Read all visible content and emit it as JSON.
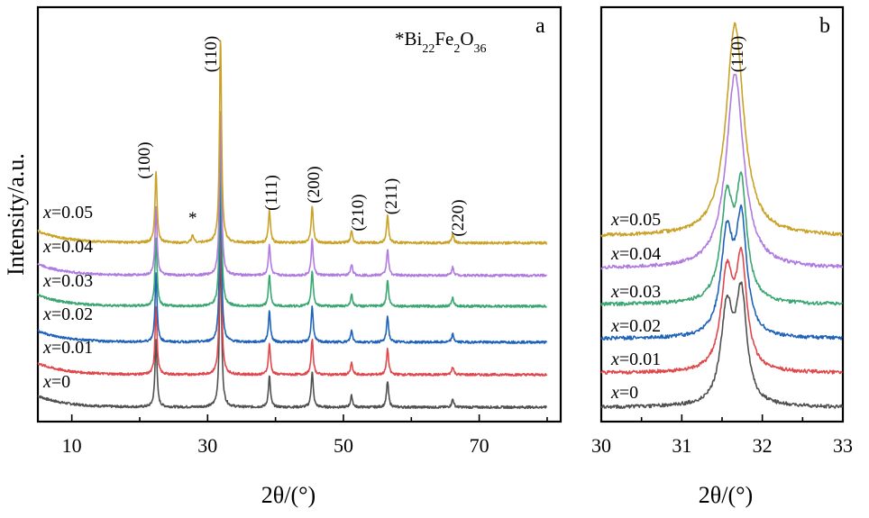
{
  "chart_data": [
    {
      "panel": "a",
      "type": "line",
      "xlabel": "2θ/(°)",
      "ylabel": "Intensity/a.u.",
      "xlim": [
        5,
        82
      ],
      "xticks": [
        10,
        30,
        50,
        70
      ],
      "series": [
        {
          "name": "x=0",
          "color": "#505050",
          "baseline": 0.0
        },
        {
          "name": "x=0.01",
          "color": "#e0474c",
          "baseline": 0.95
        },
        {
          "name": "x=0.02",
          "color": "#1f63b8",
          "baseline": 1.9
        },
        {
          "name": "x=0.03",
          "color": "#3aa672",
          "baseline": 2.95
        },
        {
          "name": "x=0.04",
          "color": "#b07be0",
          "baseline": 3.85
        },
        {
          "name": "x=0.05",
          "color": "#c9a227",
          "baseline": 4.8
        }
      ],
      "peaks": [
        {
          "label": "(100)",
          "x": 22.4,
          "height": 2.1
        },
        {
          "label": "(110)",
          "x": 31.9,
          "height": 6.0
        },
        {
          "label": "(111)",
          "x": 39.1,
          "height": 0.95
        },
        {
          "label": "(200)",
          "x": 45.4,
          "height": 1.1
        },
        {
          "label": "(210)",
          "x": 51.2,
          "height": 0.35
        },
        {
          "label": "(211)",
          "x": 56.5,
          "height": 0.8
        },
        {
          "label": "(220)",
          "x": 66.1,
          "height": 0.25
        }
      ],
      "impurity_marker": {
        "symbol": "*",
        "x": 27.8
      },
      "legend_text": {
        "prefix": "*",
        "formula": "Bi",
        "s1": "22",
        "fe": "Fe",
        "s2": "2",
        "o": "O",
        "s3": "36"
      },
      "panel_letter": "a"
    },
    {
      "panel": "b",
      "type": "line",
      "xlabel": "2θ/(°)",
      "xlim": [
        30,
        33
      ],
      "xticks": [
        30,
        31,
        32,
        33
      ],
      "peak_label": "(110)",
      "series": [
        {
          "name": "x=0",
          "color": "#505050"
        },
        {
          "name": "x=0.01",
          "color": "#e0474c"
        },
        {
          "name": "x=0.02",
          "color": "#1f63b8"
        },
        {
          "name": "x=0.03",
          "color": "#3aa672"
        },
        {
          "name": "x=0.04",
          "color": "#b07be0"
        },
        {
          "name": "x=0.05",
          "color": "#c9a227"
        }
      ],
      "panel_letter": "b"
    }
  ],
  "labels": {
    "series": [
      "x=0",
      "x=0.01",
      "x=0.02",
      "x=0.03",
      "x=0.04",
      "x=0.05"
    ]
  }
}
